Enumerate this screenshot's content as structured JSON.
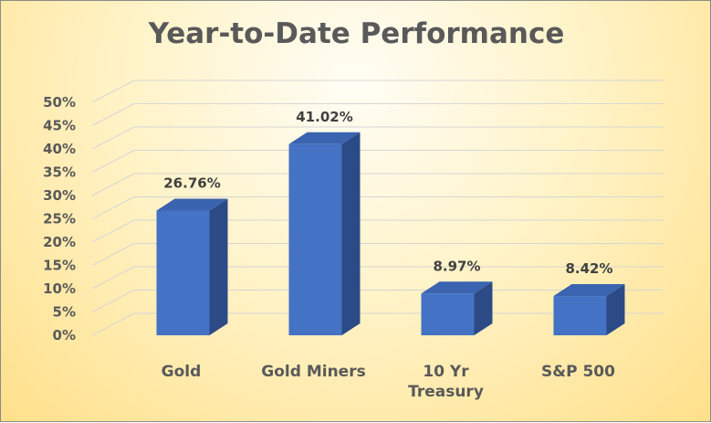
{
  "chart_data": {
    "type": "bar",
    "title": "Year-to-Date Performance",
    "categories": [
      [
        "Gold"
      ],
      [
        "Gold Miners"
      ],
      [
        "10 Yr",
        "Treasury"
      ],
      [
        "S&P 500"
      ]
    ],
    "values": [
      26.76,
      41.02,
      8.97,
      8.42
    ],
    "data_labels": [
      "26.76%",
      "41.02%",
      "8.97%",
      "8.42%"
    ],
    "ylim": [
      0,
      50
    ],
    "yticks": [
      0,
      5,
      10,
      15,
      20,
      25,
      30,
      35,
      40,
      45,
      50
    ],
    "ytick_labels": [
      "0%",
      "5%",
      "10%",
      "15%",
      "20%",
      "25%",
      "30%",
      "35%",
      "40%",
      "45%",
      "50%"
    ],
    "grid": true,
    "legend": false,
    "colors": {
      "bar_front": "#4472c4",
      "bar_side": "#2c4a86",
      "bar_top": "#3a63b0",
      "grid": "#d6d6d6"
    }
  }
}
